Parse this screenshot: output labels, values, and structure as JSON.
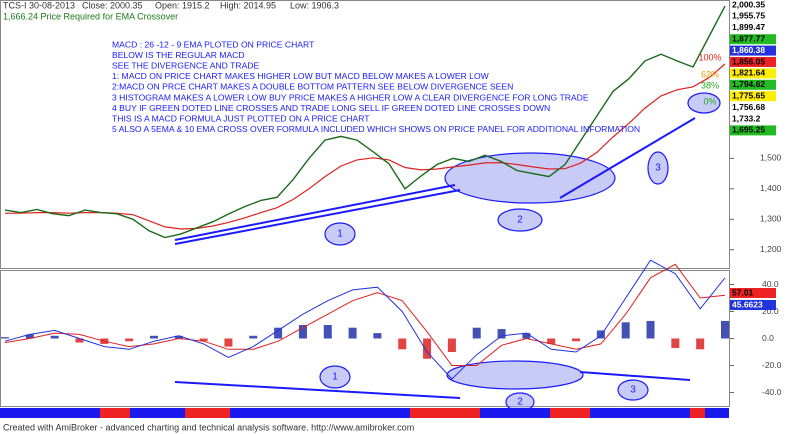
{
  "chart_data": {
    "type": "stock",
    "header": {
      "symbol": "TCS-I 30-08-2013",
      "close": "Close: 2000.35",
      "open": "Open: 1915.2",
      "high": "High: 2014.95",
      "low": "Low: 1906.3",
      "ema_note": "1,666.24 Price Required for EMA Crossover"
    },
    "annotations": [
      "MACD : 26 -12 - 9 EMA PLOTED ON PRICE CHART",
      "BELOW IS THE REGULAR MACD",
      "SEE THE DIVERGENCE AND TRADE",
      "1: MACD ON PRICE CHART MAKES HIGHER LOW BUT MACD BELOW MAKES A LOWER LOW",
      "2:MACD ON PRCE CHART MAKES A DOUBLE BOTTOM PATTERN SEE BELOW DIVERGENCE SEEN",
      "3 HISTOGRAM MAKES A LOWER LOW BUY PRICE MAKES A HIGHER LOW A CLEAR DIVERGENCE FOR LONG TRADE",
      "4 BUY IF GREEN DOTED LINE CROSSES AND TRADE LONG SELL IF GREEN DOTED LINE CROSSES DOWN",
      "THIS IS A MACD FORMULA JUST PLOTTED ON A PRICE CHART",
      "5 ALSO A 5EMA & 10 EMA CROSS OVER FORMULA INCLUDED WHICH SHOWS ON PRICE PANEL FOR ADDITIONAL INFORMATION"
    ],
    "ylim": [
      1140,
      2020
    ],
    "yticks": [
      {
        "value": 1200,
        "label": "1,200"
      },
      {
        "value": 1300,
        "label": "1,300"
      },
      {
        "value": 1400,
        "label": "1,400"
      },
      {
        "value": 1500,
        "label": "1,500"
      }
    ],
    "price": {
      "name": "TCS-I",
      "color": "#1a6a1a",
      "values": [
        1330,
        1322,
        1332,
        1318,
        1312,
        1330,
        1322,
        1318,
        1300,
        1262,
        1240,
        1252,
        1272,
        1292,
        1318,
        1342,
        1362,
        1372,
        1430,
        1500,
        1560,
        1572,
        1560,
        1522,
        1482,
        1400,
        1442,
        1480,
        1500,
        1490,
        1510,
        1490,
        1460,
        1450,
        1440,
        1480,
        1560,
        1640,
        1720,
        1762,
        1820,
        1842,
        1820,
        1800,
        1900,
        2000
      ]
    },
    "ema": {
      "color": "#e02020",
      "values": [
        1320,
        1320,
        1322,
        1322,
        1320,
        1322,
        1322,
        1320,
        1315,
        1295,
        1275,
        1268,
        1270,
        1278,
        1290,
        1305,
        1322,
        1338,
        1365,
        1400,
        1440,
        1475,
        1495,
        1502,
        1495,
        1470,
        1462,
        1465,
        1472,
        1478,
        1485,
        1486,
        1480,
        1472,
        1465,
        1466,
        1485,
        1520,
        1570,
        1615,
        1665,
        1705,
        1725,
        1735,
        1765,
        1810
      ]
    },
    "price_tags": [
      {
        "label": "2,000.35",
        "bg": "#ffffff",
        "fg": "#000"
      },
      {
        "label": "1,955.75",
        "bg": "#ffffff",
        "fg": "#000"
      },
      {
        "label": "1,899.47",
        "bg": "#ffffff",
        "fg": "#000"
      },
      {
        "label": "1,877.77",
        "bg": "#22bb22",
        "fg": "#000"
      },
      {
        "label": "1,860.38",
        "bg": "#2233dd",
        "fg": "#fff"
      },
      {
        "label": "1,856.05",
        "bg": "#ee2222",
        "fg": "#000"
      },
      {
        "label": "1,821.64",
        "bg": "#ffee00",
        "fg": "#000"
      },
      {
        "label": "1,794.62",
        "bg": "#22bb22",
        "fg": "#000"
      },
      {
        "label": "1,775.65",
        "bg": "#ffee00",
        "fg": "#000"
      },
      {
        "label": "1,756.68",
        "bg": "#ffffff",
        "fg": "#000"
      },
      {
        "label": "1,733.2",
        "bg": "#ffffff",
        "fg": "#000"
      },
      {
        "label": "1,695.25",
        "bg": "#22bb22",
        "fg": "#000"
      }
    ],
    "fib_labels": [
      {
        "label": "100%",
        "color": "#e02020"
      },
      {
        "label": "62%",
        "color": "#e0a000"
      },
      {
        "label": "38%",
        "color": "#22aa22"
      },
      {
        "label": "0%",
        "color": "#22aa22"
      }
    ],
    "macd": {
      "ylim": [
        -50,
        50
      ],
      "yticks": [
        {
          "value": -40,
          "label": "-40.0"
        },
        {
          "value": -20,
          "label": "-20.0"
        },
        {
          "value": 0,
          "label": "0.0"
        },
        {
          "value": 20,
          "label": "20.0"
        },
        {
          "value": 40,
          "label": "40.0"
        }
      ],
      "macd_line": {
        "color": "#2233dd",
        "values": [
          -2,
          3,
          6,
          0,
          -6,
          -8,
          -2,
          2,
          -4,
          -14,
          -6,
          6,
          18,
          28,
          36,
          38,
          20,
          -10,
          -30,
          -12,
          2,
          4,
          -8,
          -10,
          2,
          30,
          58,
          48,
          22,
          45
        ]
      },
      "signal_line": {
        "color": "#e02020",
        "values": [
          -3,
          0,
          4,
          3,
          -2,
          -6,
          -4,
          0,
          -2,
          -8,
          -8,
          -2,
          8,
          18,
          28,
          34,
          28,
          5,
          -20,
          -20,
          -5,
          0,
          -4,
          -8,
          -4,
          18,
          45,
          55,
          30,
          32
        ]
      },
      "histogram": {
        "pos_color": "#2233aa",
        "neg_color": "#dd2222",
        "values": [
          1,
          3,
          2,
          -3,
          -4,
          -2,
          2,
          2,
          -2,
          -6,
          2,
          8,
          10,
          10,
          8,
          4,
          -8,
          -15,
          -10,
          8,
          7,
          4,
          -4,
          -2,
          6,
          12,
          13,
          -7,
          -8,
          13
        ]
      },
      "tags": [
        {
          "label": "57.01",
          "bg": "#ee2222",
          "fg": "#000"
        },
        {
          "label": "45.6623",
          "bg": "#2233dd",
          "fg": "#fff"
        }
      ]
    },
    "ellipse_labels": [
      "1",
      "2",
      "3"
    ],
    "footer": "Created with AmiBroker - advanced charting and technical analysis software. http://www.amibroker.com"
  }
}
